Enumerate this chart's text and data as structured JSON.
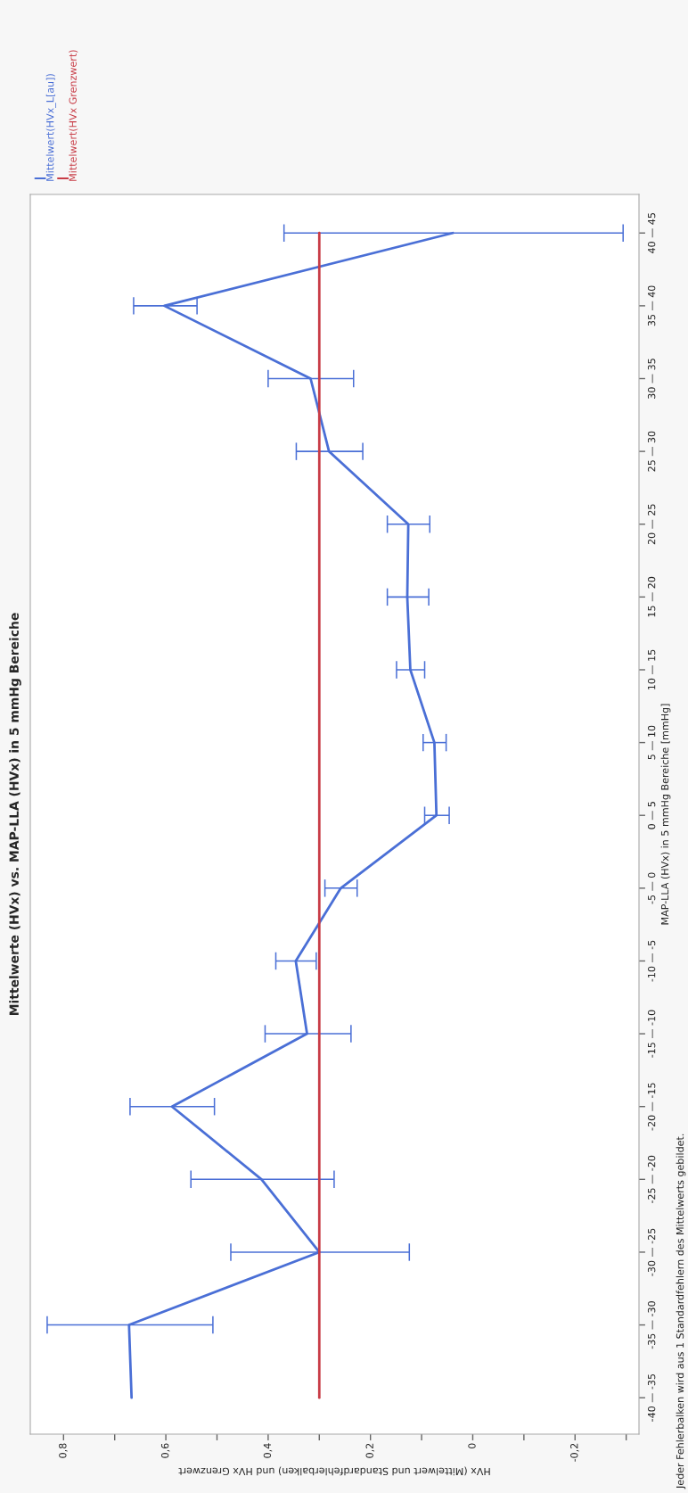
{
  "chart_data": {
    "type": "line",
    "orientation": "horizontal",
    "title": "Mittelwerte (HVx) vs. MAP-LLA (HVx) in 5 mmHg Bereiche",
    "xlabel": "HVx (Mittelwert und Standardfehlerbalken) und HVx Grenzwert",
    "ylabel": "MAP-LLA (HVx) in 5 mmHg Bereiche [mmHg]",
    "categories": [
      "40 — 45",
      "35 — 40",
      "30 — 35",
      "25 — 30",
      "20 — 25",
      "15 — 20",
      "10 — 15",
      "5 — 10",
      "0 — 5",
      "-5 — 0",
      "-10 — -5",
      "-15 — -10",
      "-20 — -15",
      "-25 — -20",
      "-30 — -25",
      "-35 — -30",
      "-40 — -35"
    ],
    "xlim": [
      0.865,
      -0.325
    ],
    "xticks": [
      {
        "value": 0.8,
        "label": "0,8"
      },
      {
        "value": 0.7,
        "label": null
      },
      {
        "value": 0.6,
        "label": "0,6"
      },
      {
        "value": 0.5,
        "label": null
      },
      {
        "value": 0.4,
        "label": "0,4"
      },
      {
        "value": 0.3,
        "label": null
      },
      {
        "value": 0.2,
        "label": "0,2"
      },
      {
        "value": 0.1,
        "label": null
      },
      0,
      {
        "value": -0.1,
        "label": null
      },
      {
        "value": -0.2,
        "label": "-0,2"
      },
      {
        "value": -0.3,
        "label": null
      }
    ],
    "series": [
      {
        "name": "Mittelwert(HVx_L[au])",
        "color": "#4a6fd6",
        "values": [
          0.039,
          0.603,
          0.317,
          0.281,
          0.126,
          0.128,
          0.122,
          0.075,
          0.071,
          0.258,
          0.346,
          0.324,
          0.588,
          0.413,
          0.3,
          0.672,
          0.667
        ],
        "errors": [
          [
            -0.294,
            0.369
          ],
          [
            0.539,
            0.663
          ],
          [
            0.233,
            0.4
          ],
          [
            0.215,
            0.345
          ],
          [
            0.084,
            0.167
          ],
          [
            0.086,
            0.167
          ],
          [
            0.094,
            0.149
          ],
          [
            0.052,
            0.097
          ],
          [
            0.046,
            0.094
          ],
          [
            0.226,
            0.289
          ],
          [
            0.306,
            0.385
          ],
          [
            0.238,
            0.406
          ],
          [
            0.505,
            0.67
          ],
          [
            0.271,
            0.551
          ],
          [
            0.124,
            0.473
          ],
          [
            0.508,
            0.832
          ],
          null
        ]
      },
      {
        "name": "Mittelwert(HVx Grenzwert)",
        "color": "#c83c46",
        "values": [
          0.3,
          0.3,
          0.3,
          0.3,
          0.3,
          0.3,
          0.3,
          0.3,
          0.3,
          0.3,
          0.3,
          0.3,
          0.3,
          0.3,
          0.3,
          0.3,
          0.3
        ]
      }
    ],
    "legend": "top left",
    "annotations": [
      "Jeder Fehlerbalken wird aus 1 Standardfehlern des Mittelwerts gebildet."
    ]
  }
}
